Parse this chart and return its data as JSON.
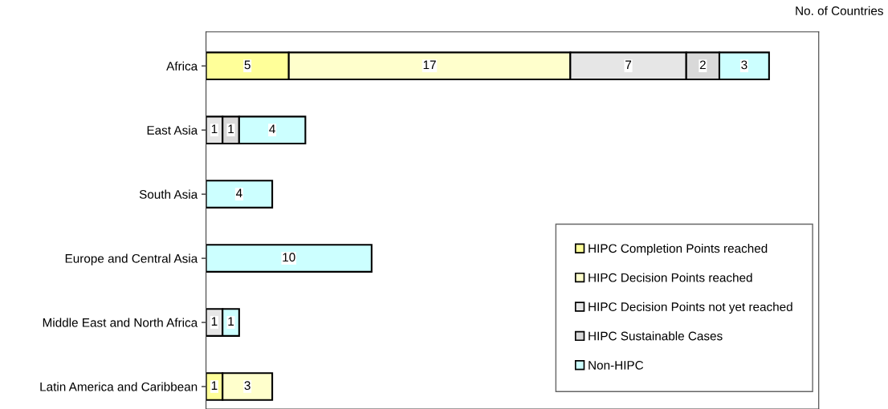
{
  "chart_data": {
    "type": "bar",
    "orientation": "horizontal",
    "stacked": true,
    "xlabel": "No. of Countries",
    "categories": [
      "Africa",
      "East Asia",
      "South Asia",
      "Europe and Central Asia",
      "Middle East and North Africa",
      "Latin America and Caribbean"
    ],
    "series": [
      {
        "name": "HIPC Completion Points reached",
        "color": "#ffff99",
        "values": [
          5,
          null,
          null,
          null,
          null,
          1
        ]
      },
      {
        "name": "HIPC Decision Points reached",
        "color": "#ffffcc",
        "values": [
          17,
          null,
          null,
          null,
          null,
          3
        ]
      },
      {
        "name": "HIPC Decision Points not yet reached",
        "color": "#e6e6e6",
        "values": [
          7,
          1,
          null,
          null,
          1,
          null
        ]
      },
      {
        "name": "HIPC Sustainable Cases",
        "color": "#d9d9d9",
        "values": [
          2,
          1,
          null,
          null,
          null,
          null
        ]
      },
      {
        "name": "Non-HIPC",
        "color": "#ccffff",
        "values": [
          3,
          4,
          4,
          10,
          1,
          null
        ]
      }
    ],
    "xlim": [
      0,
      37
    ],
    "tick_labels": "y",
    "data_labels": true,
    "legend": "lower right",
    "grid": false
  }
}
